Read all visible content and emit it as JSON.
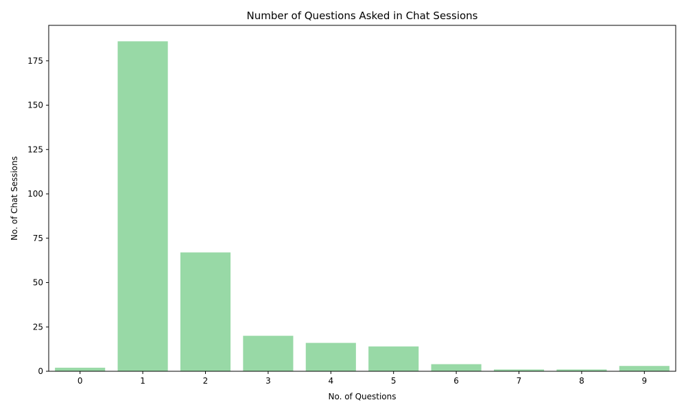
{
  "chart_data": {
    "type": "bar",
    "title": "Number of Questions Asked in Chat Sessions",
    "xlabel": "No. of Questions",
    "ylabel": "No. of Chat Sessions",
    "categories": [
      "0",
      "1",
      "2",
      "3",
      "4",
      "5",
      "6",
      "7",
      "8",
      "9"
    ],
    "values": [
      2,
      186,
      67,
      20,
      16,
      14,
      4,
      1,
      1,
      3
    ],
    "ylim": [
      0,
      195
    ],
    "yticks": [
      0,
      25,
      50,
      75,
      100,
      125,
      150,
      175
    ],
    "ytick_labels": [
      "0",
      "25",
      "50",
      "75",
      "100",
      "125",
      "150",
      "175"
    ],
    "grid": false,
    "bar_color": "#98d9a6"
  }
}
